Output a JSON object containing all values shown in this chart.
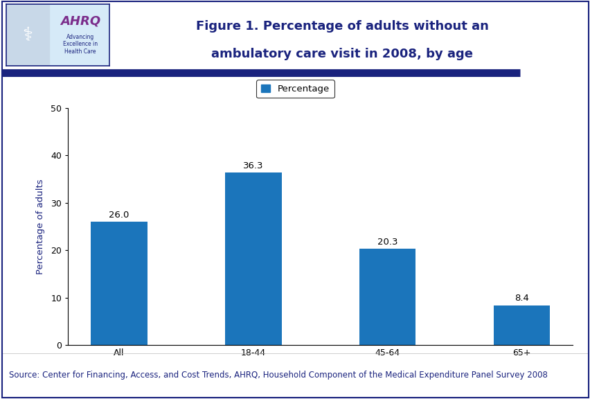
{
  "title_line1": "Figure 1. Percentage of adults without an",
  "title_line2": "ambulatory care visit in 2008, by age",
  "title_color": "#1A237E",
  "title_fontsize": 13,
  "categories": [
    "All",
    "18-44",
    "45-64",
    "65+"
  ],
  "values": [
    26.0,
    36.3,
    20.3,
    8.4
  ],
  "bar_color": "#1B75BB",
  "ylabel": "Percentage of adults",
  "ylabel_color": "#1A237E",
  "ylim": [
    0,
    50
  ],
  "yticks": [
    0,
    10,
    20,
    30,
    40,
    50
  ],
  "legend_label": "Percentage",
  "source_text": "Source: Center for Financing, Access, and Cost Trends, AHRQ, Household Component of the Medical Expenditure Panel Survey 2008",
  "source_fontsize": 8.5,
  "background_color": "#FFFFFF",
  "header_line_color": "#1A237E",
  "bar_label_fontsize": 9.5,
  "axis_label_fontsize": 9.5,
  "tick_fontsize": 9,
  "legend_fontsize": 9.5,
  "header_bg": "#FFFFFF",
  "thick_line_color": "#1A237E",
  "outer_border_color": "#1A237E"
}
